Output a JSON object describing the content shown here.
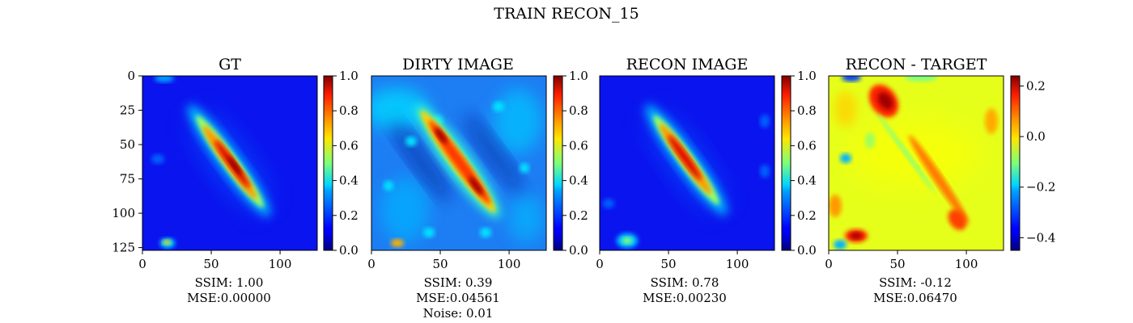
{
  "figure": {
    "title": "TRAIN RECON_15"
  },
  "chart_data": [
    {
      "type": "heatmap",
      "title": "GT",
      "stats": [
        "SSIM: 1.00",
        "MSE:0.00000"
      ],
      "x_ticks": [
        0,
        50,
        100
      ],
      "y_ticks": [
        0,
        25,
        50,
        75,
        100,
        125
      ],
      "xlim": [
        0,
        127
      ],
      "ylim": [
        127,
        0
      ],
      "colormap": "jet",
      "colorbar": {
        "min": 0.0,
        "max": 1.0,
        "ticks": [
          "0.0",
          "0.2",
          "0.4",
          "0.6",
          "0.8",
          "1.0"
        ],
        "values": [
          0.0,
          0.2,
          0.4,
          0.6,
          0.8,
          1.0
        ]
      },
      "grid": false
    },
    {
      "type": "heatmap",
      "title": "DIRTY IMAGE",
      "stats": [
        "SSIM: 0.39",
        "MSE:0.04561",
        "Noise: 0.01"
      ],
      "x_ticks": [
        0,
        50,
        100
      ],
      "xlim": [
        0,
        127
      ],
      "ylim": [
        127,
        0
      ],
      "colormap": "jet",
      "colorbar": {
        "min": 0.0,
        "max": 1.0,
        "ticks": [
          "0.0",
          "0.2",
          "0.4",
          "0.6",
          "0.8",
          "1.0"
        ],
        "values": [
          0.0,
          0.2,
          0.4,
          0.6,
          0.8,
          1.0
        ]
      },
      "grid": false
    },
    {
      "type": "heatmap",
      "title": "RECON IMAGE",
      "stats": [
        "SSIM: 0.78",
        "MSE:0.00230"
      ],
      "x_ticks": [
        0,
        50,
        100
      ],
      "xlim": [
        0,
        127
      ],
      "ylim": [
        127,
        0
      ],
      "colormap": "jet",
      "colorbar": {
        "min": 0.0,
        "max": 1.0,
        "ticks": [
          "0.0",
          "0.2",
          "0.4",
          "0.6",
          "0.8",
          "1.0"
        ],
        "values": [
          0.0,
          0.2,
          0.4,
          0.6,
          0.8,
          1.0
        ]
      },
      "grid": false
    },
    {
      "type": "heatmap",
      "title": "RECON - TARGET",
      "stats": [
        "SSIM: -0.12",
        "MSE:0.06470"
      ],
      "x_ticks": [
        0,
        50,
        100
      ],
      "xlim": [
        0,
        127
      ],
      "ylim": [
        127,
        0
      ],
      "colormap": "jet",
      "colorbar": {
        "min": -0.45,
        "max": 0.24,
        "ticks": [
          "0.2",
          "0.0",
          "−0.2",
          "−0.4"
        ],
        "values": [
          0.2,
          0.0,
          -0.2,
          -0.4
        ]
      },
      "grid": false
    }
  ]
}
